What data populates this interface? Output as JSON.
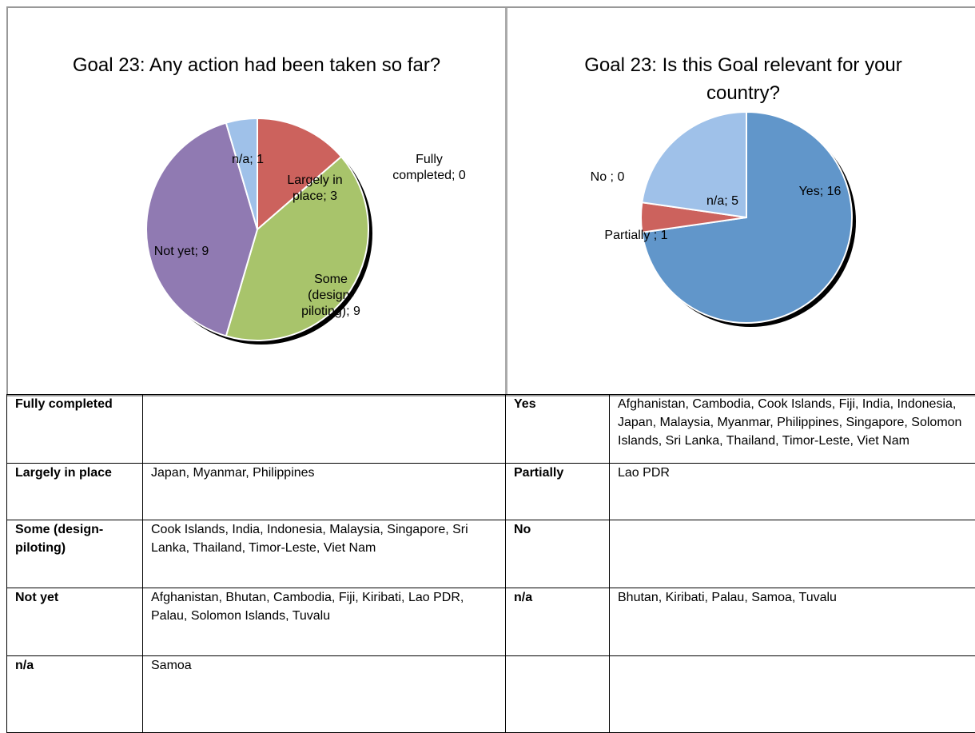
{
  "chart_data": [
    {
      "type": "pie",
      "title": "Goal 23: Any action had been taken so far?",
      "values": [
        0,
        3,
        9,
        9,
        1
      ],
      "value_labels": [
        "Fully completed; 0",
        "Largely in place; 3",
        "Some (design-piloting); 9",
        "Not yet; 9",
        "n/a; 1"
      ],
      "colors": [
        "#5b8fc7",
        "#cc625d",
        "#a8c46b",
        "#907ab2",
        "#9fc1e9"
      ]
    },
    {
      "type": "pie",
      "title": "Goal 23: Is this Goal relevant for your country?",
      "values": [
        16,
        1,
        0,
        5
      ],
      "value_labels": [
        "Yes; 16",
        "Partially ; 1",
        "No ; 0",
        "n/a; 5"
      ],
      "colors": [
        "#6196ca",
        "#cc625d",
        "#a8c46b",
        "#9fc1e9"
      ]
    }
  ],
  "table": {
    "rows": [
      [
        "Fully completed",
        null,
        "Yes",
        "Afghanistan, Cambodia, Cook Islands, Fiji, India, Indonesia, Japan, Malaysia, Myanmar, Philippines, Singapore, Solomon Islands, Sri Lanka, Thailand, Timor-Leste, Viet Nam"
      ],
      [
        "Largely in place",
        "Japan, Myanmar, Philippines",
        "Partially",
        "Lao PDR"
      ],
      [
        "Some (design-piloting)",
        "Cook Islands, India, Indonesia, Malaysia, Singapore, Sri Lanka, Thailand, Timor-Leste, Viet Nam",
        "No",
        null
      ],
      [
        "Not yet",
        "Afghanistan, Bhutan, Cambodia, Fiji, Kiribati, Lao PDR, Palau, Solomon Islands, Tuvalu",
        "n/a",
        "Bhutan, Kiribati, Palau, Samoa, Tuvalu"
      ],
      [
        "n/a",
        "Samoa",
        null,
        null
      ]
    ]
  }
}
